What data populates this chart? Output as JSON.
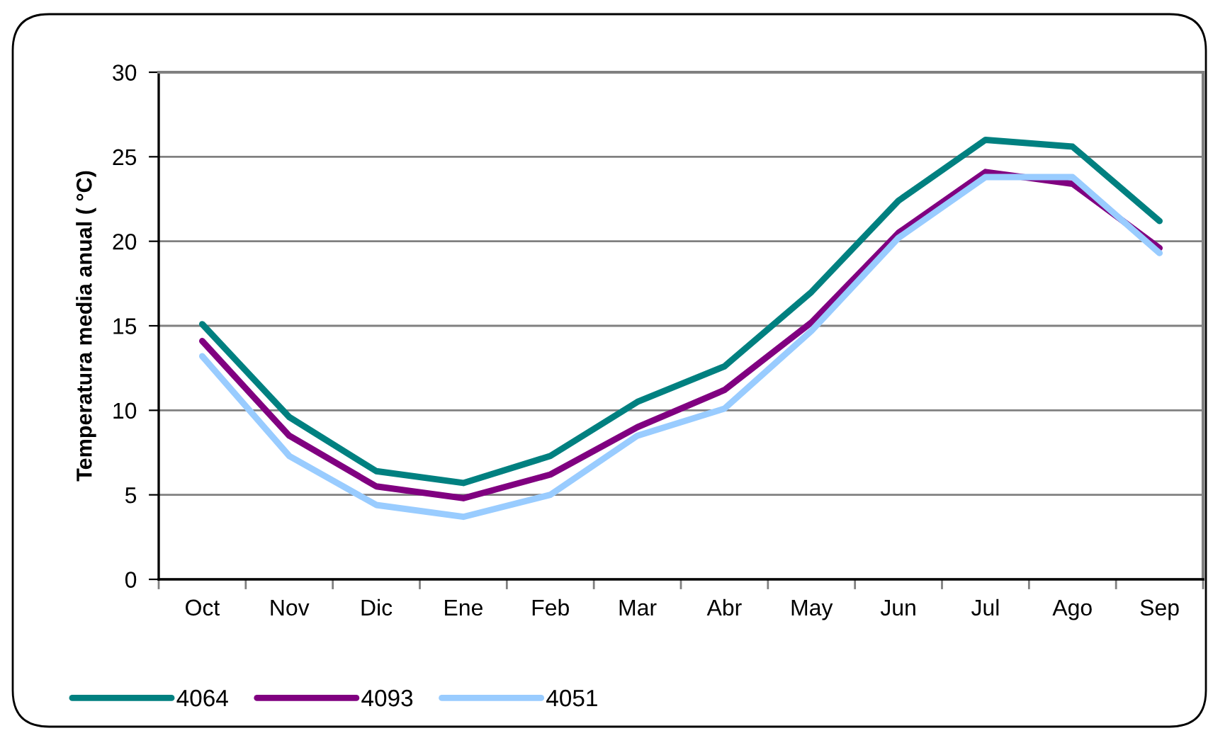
{
  "chart_data": {
    "type": "line",
    "ylabel": "Temperatura media anual ( °C)",
    "categories": [
      "Oct",
      "Nov",
      "Dic",
      "Ene",
      "Feb",
      "Mar",
      "Abr",
      "May",
      "Jun",
      "Jul",
      "Ago",
      "Sep"
    ],
    "series": [
      {
        "name": "4064",
        "color": "#008080",
        "values": [
          15.1,
          9.6,
          6.4,
          5.7,
          7.3,
          10.5,
          12.6,
          17.0,
          22.4,
          26.0,
          25.6,
          21.2
        ]
      },
      {
        "name": "4093",
        "color": "#800080",
        "values": [
          14.1,
          8.5,
          5.5,
          4.8,
          6.2,
          9.0,
          11.2,
          15.2,
          20.5,
          24.1,
          23.4,
          19.6
        ]
      },
      {
        "name": "4051",
        "color": "#99ccff",
        "values": [
          13.2,
          7.3,
          4.4,
          3.7,
          5.0,
          8.5,
          10.1,
          14.7,
          20.2,
          23.8,
          23.8,
          19.3
        ]
      }
    ],
    "ylim": [
      0,
      30
    ],
    "yticks": [
      0,
      5,
      10,
      15,
      20,
      25,
      30
    ],
    "grid": "y",
    "legend": "bottom left",
    "marker": "none",
    "line_style": "solid"
  }
}
